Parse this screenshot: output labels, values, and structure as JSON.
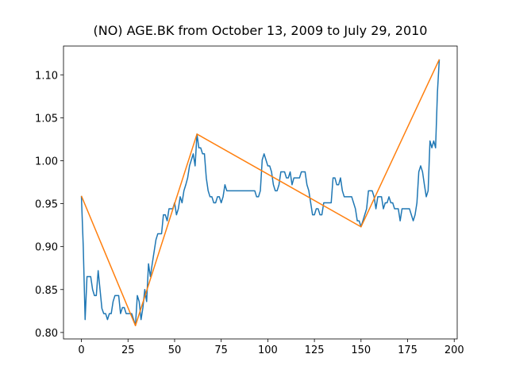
{
  "chart_data": {
    "type": "line",
    "title": "(NO) AGE.BK from October 13, 2009 to July 29, 2010",
    "series": [
      {
        "color": "#1f77b4",
        "x": [
          0,
          1,
          2,
          3,
          4,
          5,
          6,
          7,
          8,
          9,
          10,
          11,
          12,
          13,
          14,
          15,
          16,
          17,
          18,
          19,
          20,
          21,
          22,
          23,
          24,
          25,
          26,
          27,
          28,
          29,
          30,
          31,
          32,
          33,
          34,
          35,
          36,
          37,
          38,
          39,
          40,
          41,
          42,
          43,
          44,
          45,
          46,
          47,
          48,
          49,
          50,
          51,
          52,
          53,
          54,
          55,
          56,
          57,
          58,
          59,
          60,
          61,
          62,
          63,
          64,
          65,
          66,
          67,
          68,
          69,
          70,
          71,
          72,
          73,
          74,
          75,
          76,
          77,
          78,
          79,
          80,
          81,
          82,
          83,
          84,
          85,
          86,
          87,
          88,
          89,
          90,
          91,
          92,
          93,
          94,
          95,
          96,
          97,
          98,
          99,
          100,
          101,
          102,
          103,
          104,
          105,
          106,
          107,
          108,
          109,
          110,
          111,
          112,
          113,
          114,
          115,
          116,
          117,
          118,
          119,
          120,
          121,
          122,
          123,
          124,
          125,
          126,
          127,
          128,
          129,
          130,
          131,
          132,
          133,
          134,
          135,
          136,
          137,
          138,
          139,
          140,
          141,
          142,
          143,
          144,
          145,
          146,
          147,
          148,
          149,
          150,
          151,
          152,
          153,
          154,
          155,
          156,
          157,
          158,
          159,
          160,
          161,
          162,
          163,
          164,
          165,
          166,
          167,
          168,
          169,
          170,
          171,
          172,
          173,
          174,
          175,
          176,
          177,
          178,
          179,
          180,
          181,
          182,
          183,
          184,
          185,
          186,
          187,
          188,
          189,
          190,
          191,
          192
        ],
        "values": [
          0.959,
          0.9,
          0.815,
          0.865,
          0.865,
          0.865,
          0.85,
          0.843,
          0.843,
          0.872,
          0.85,
          0.828,
          0.822,
          0.822,
          0.815,
          0.822,
          0.822,
          0.836,
          0.843,
          0.843,
          0.843,
          0.822,
          0.829,
          0.829,
          0.822,
          0.822,
          0.822,
          0.822,
          0.815,
          0.808,
          0.843,
          0.836,
          0.815,
          0.829,
          0.85,
          0.836,
          0.88,
          0.865,
          0.88,
          0.894,
          0.908,
          0.915,
          0.915,
          0.915,
          0.937,
          0.937,
          0.93,
          0.944,
          0.944,
          0.944,
          0.951,
          0.937,
          0.944,
          0.958,
          0.951,
          0.965,
          0.972,
          0.98,
          0.994,
          1.001,
          1.008,
          0.994,
          1.031,
          1.015,
          1.015,
          1.008,
          1.008,
          0.98,
          0.965,
          0.958,
          0.958,
          0.951,
          0.951,
          0.958,
          0.958,
          0.951,
          0.958,
          0.972,
          0.965,
          0.965,
          0.965,
          0.965,
          0.965,
          0.965,
          0.965,
          0.965,
          0.965,
          0.965,
          0.965,
          0.965,
          0.965,
          0.965,
          0.965,
          0.965,
          0.958,
          0.958,
          0.965,
          1.001,
          1.008,
          1.001,
          0.994,
          0.994,
          0.987,
          0.972,
          0.965,
          0.965,
          0.972,
          0.987,
          0.987,
          0.987,
          0.98,
          0.98,
          0.987,
          0.972,
          0.98,
          0.98,
          0.98,
          0.98,
          0.987,
          0.987,
          0.987,
          0.972,
          0.965,
          0.951,
          0.937,
          0.937,
          0.944,
          0.944,
          0.937,
          0.937,
          0.951,
          0.951,
          0.951,
          0.951,
          0.951,
          0.98,
          0.98,
          0.972,
          0.972,
          0.98,
          0.965,
          0.958,
          0.958,
          0.958,
          0.958,
          0.958,
          0.951,
          0.944,
          0.93,
          0.93,
          0.923,
          0.93,
          0.937,
          0.944,
          0.965,
          0.965,
          0.965,
          0.958,
          0.944,
          0.958,
          0.958,
          0.958,
          0.944,
          0.951,
          0.951,
          0.958,
          0.951,
          0.951,
          0.944,
          0.944,
          0.944,
          0.93,
          0.944,
          0.944,
          0.944,
          0.944,
          0.944,
          0.937,
          0.93,
          0.937,
          0.951,
          0.987,
          0.994,
          0.987,
          0.972,
          0.958,
          0.965,
          1.023,
          1.015,
          1.023,
          1.015,
          1.08,
          1.118
        ]
      },
      {
        "color": "#ff7f0e",
        "x": [
          0,
          29,
          62,
          150,
          192
        ],
        "values": [
          0.959,
          0.808,
          1.031,
          0.923,
          1.118
        ]
      }
    ],
    "xlim": [
      -9.6,
      201.6
    ],
    "xticks": [
      0,
      25,
      50,
      75,
      100,
      125,
      150,
      175,
      200
    ],
    "ylim": [
      0.7925,
      1.1335
    ],
    "yticks": [
      {
        "value": 0.8,
        "label": "0.80"
      },
      {
        "value": 0.85,
        "label": "0.85"
      },
      {
        "value": 0.9,
        "label": "0.90"
      },
      {
        "value": 0.95,
        "label": "0.95"
      },
      {
        "value": 1.0,
        "label": "1.00"
      },
      {
        "value": 1.05,
        "label": "1.05"
      },
      {
        "value": 1.1,
        "label": "1.10"
      }
    ],
    "grid": false
  }
}
